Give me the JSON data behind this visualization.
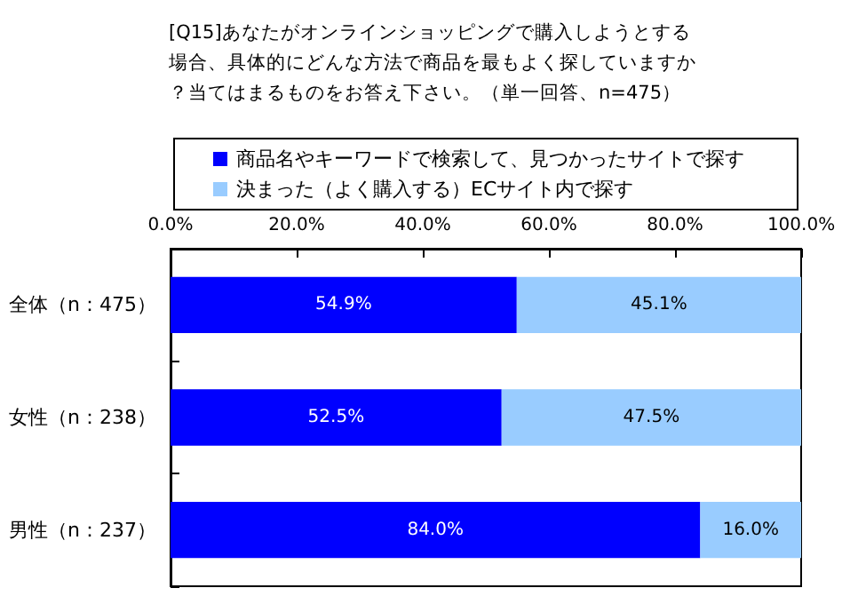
{
  "chart_data": {
    "type": "bar",
    "orientation": "horizontal",
    "stacked": true,
    "title": "[Q15]あなたがオンラインショッピングで購入しようとする場合、具体的にどんな方法で商品を最もよく探していますか？当てはまるものをお答え下さい。（単一回答、n=475）",
    "categories": [
      "全体（n：475）",
      "女性（n：238）",
      "男性（n：237）"
    ],
    "series": [
      {
        "name": "商品名やキーワードで検索して、見つかったサイトで探す",
        "color": "#0000ff",
        "values": [
          54.9,
          52.5,
          84.0
        ],
        "value_labels": [
          "54.9%",
          "52.5%",
          "84.0%"
        ]
      },
      {
        "name": "決まった（よく購入する）ECサイト内で探す",
        "color": "#99ccff",
        "values": [
          45.1,
          47.5,
          16.0
        ],
        "value_labels": [
          "45.1%",
          "47.5%",
          "16.0%"
        ]
      }
    ],
    "xlim": [
      0,
      100
    ],
    "xticks": [
      {
        "value": 0,
        "label": "0.0%"
      },
      {
        "value": 20,
        "label": "20.0%"
      },
      {
        "value": 40,
        "label": "40.0%"
      },
      {
        "value": 60,
        "label": "60.0%"
      },
      {
        "value": 80,
        "label": "80.0%"
      },
      {
        "value": 100,
        "label": "100.0%"
      }
    ],
    "grid": false,
    "legend": "top"
  }
}
